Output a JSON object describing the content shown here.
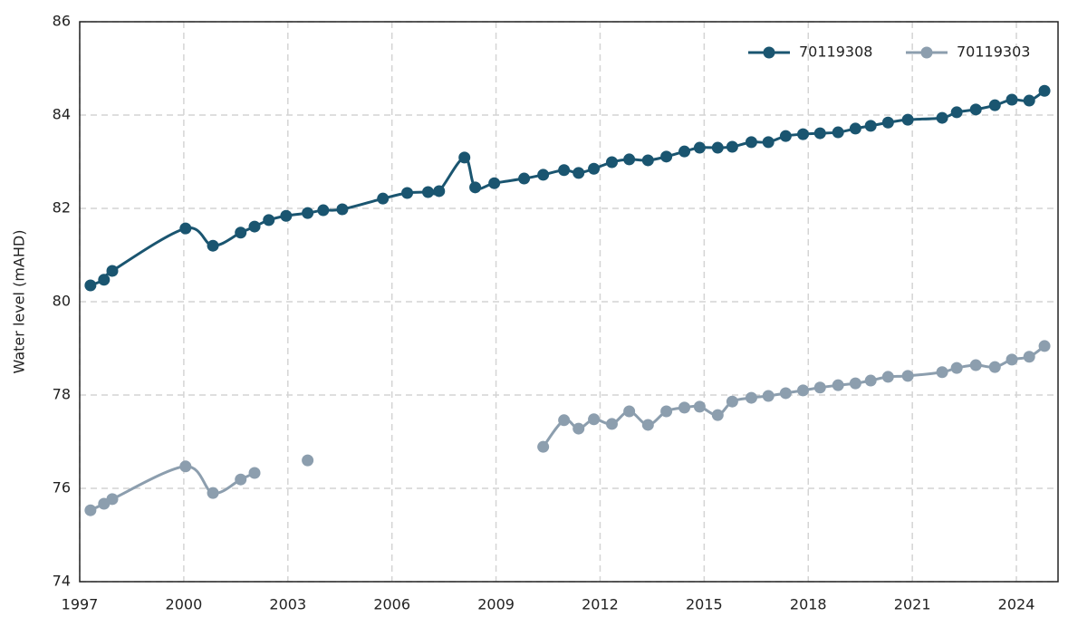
{
  "chart_data": {
    "type": "line",
    "y_label": "Water level (mAHD)",
    "x": [
      1997.31,
      1997.7,
      1997.94,
      2000.05,
      2000.84,
      2001.64,
      2002.04,
      2002.45,
      2002.95,
      2003.57,
      2004.02,
      2004.57,
      2005.74,
      2006.44,
      2007.04,
      2007.36,
      2008.09,
      2008.4,
      2008.95,
      2009.81,
      2010.36,
      2010.96,
      2011.38,
      2011.82,
      2012.34,
      2012.84,
      2013.38,
      2013.91,
      2014.43,
      2014.87,
      2015.39,
      2015.81,
      2016.36,
      2016.85,
      2017.35,
      2017.85,
      2018.34,
      2018.86,
      2019.36,
      2019.8,
      2020.3,
      2020.87,
      2021.86,
      2022.28,
      2022.83,
      2023.38,
      2023.87,
      2024.37,
      2024.81
    ],
    "series": [
      {
        "name": "70119308",
        "color": "#1a5570",
        "values": [
          80.35,
          80.47,
          80.66,
          81.57,
          81.2,
          81.48,
          81.61,
          81.75,
          81.84,
          81.9,
          81.96,
          81.98,
          82.21,
          82.33,
          82.35,
          82.37,
          83.09,
          82.45,
          82.54,
          82.64,
          82.72,
          82.82,
          82.76,
          82.85,
          82.99,
          83.05,
          83.03,
          83.11,
          83.22,
          83.3,
          83.3,
          83.32,
          83.42,
          83.42,
          83.55,
          83.59,
          83.61,
          83.63,
          83.71,
          83.77,
          83.84,
          83.9,
          83.94,
          84.06,
          84.12,
          84.21,
          84.33,
          84.31,
          84.52
        ]
      },
      {
        "name": "70119303",
        "color": "#8c9eae",
        "values": [
          75.53,
          75.67,
          75.77,
          76.47,
          75.9,
          76.19,
          76.33,
          null,
          null,
          76.6,
          null,
          null,
          null,
          null,
          null,
          null,
          null,
          null,
          null,
          null,
          76.89,
          77.46,
          77.28,
          77.48,
          77.38,
          77.65,
          77.36,
          77.65,
          77.73,
          77.75,
          77.57,
          77.86,
          77.94,
          77.98,
          78.04,
          78.1,
          78.16,
          78.21,
          78.25,
          78.31,
          78.39,
          78.41,
          78.49,
          78.58,
          78.64,
          78.6,
          78.76,
          78.82,
          79.05
        ]
      }
    ],
    "xlim": [
      1997,
      2025.2
    ],
    "xticks": [
      1997,
      2000,
      2003,
      2006,
      2009,
      2012,
      2015,
      2018,
      2021,
      2024
    ],
    "ylim": [
      74,
      86
    ],
    "yticks": [
      74,
      76,
      78,
      80,
      82,
      84,
      86
    ],
    "grid": true,
    "legend": "upper right"
  }
}
